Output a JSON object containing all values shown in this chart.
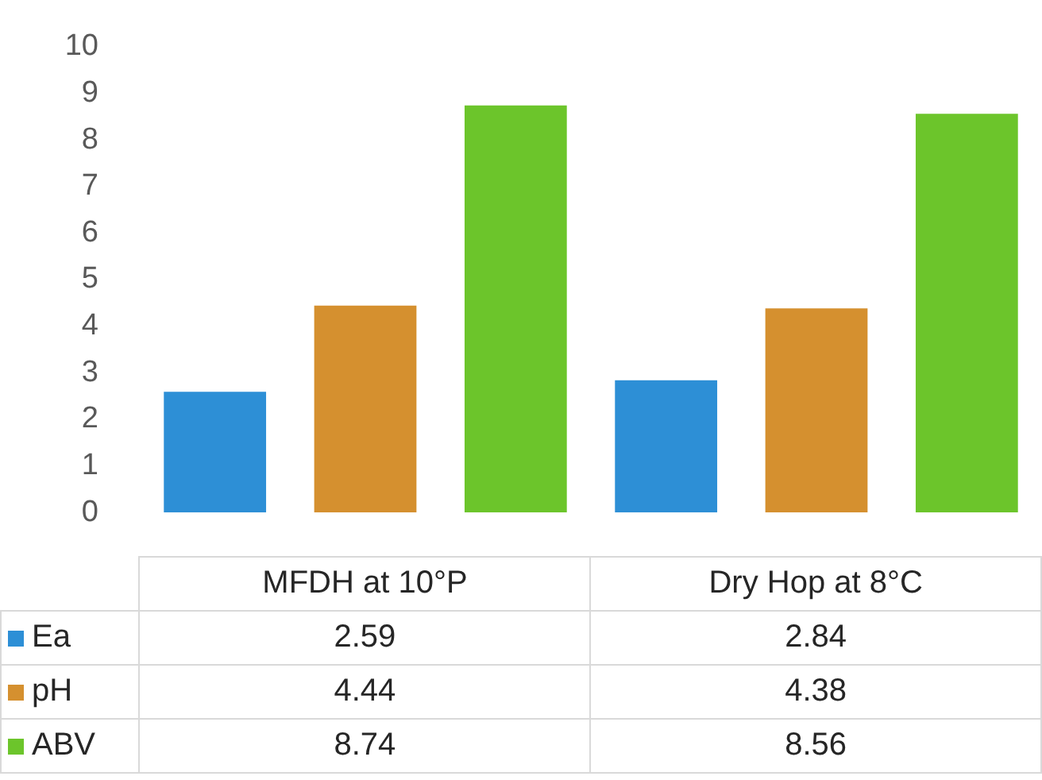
{
  "chart_data": {
    "type": "bar",
    "categories": [
      "MFDH at 10°P",
      "Dry Hop at 8°C"
    ],
    "series": [
      {
        "name": "Ea",
        "color": "#2d8fd6",
        "values": [
          2.59,
          2.84
        ]
      },
      {
        "name": "pH",
        "color": "#d5902f",
        "values": [
          4.44,
          4.38
        ]
      },
      {
        "name": "ABV",
        "color": "#6cc52b",
        "values": [
          8.74,
          8.56
        ]
      }
    ],
    "ylim": [
      0,
      10
    ],
    "yticks": [
      0,
      1,
      2,
      3,
      4,
      5,
      6,
      7,
      8,
      9,
      10
    ],
    "grid": false,
    "legend": "bottom",
    "data_labels": true
  }
}
